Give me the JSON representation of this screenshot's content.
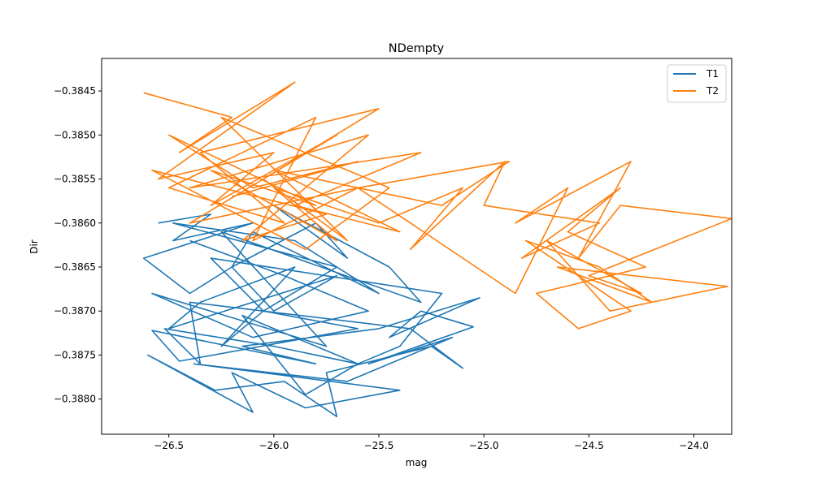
{
  "chart_data": {
    "type": "line",
    "title": "NDempty",
    "xlabel": "mag",
    "ylabel": "Dir",
    "xlim": [
      -26.82,
      -23.82
    ],
    "ylim": [
      -0.3884,
      -0.38413
    ],
    "xticks": [
      -26.5,
      -26.0,
      -25.5,
      -25.0,
      -24.5,
      -24.0
    ],
    "xtick_labels": [
      "−26.5",
      "−26.0",
      "−25.5",
      "−25.0",
      "−24.5",
      "−24.0"
    ],
    "yticks": [
      -0.3845,
      -0.385,
      -0.3855,
      -0.386,
      -0.3865,
      -0.387,
      -0.3875,
      -0.388
    ],
    "ytick_labels": [
      "−0.3845",
      "−0.3850",
      "−0.3855",
      "−0.3860",
      "−0.3865",
      "−0.3870",
      "−0.3875",
      "−0.3880"
    ],
    "grid": false,
    "legend_position": "top-right",
    "series": [
      {
        "name": "T1",
        "color": "#1f77b4",
        "x": [
          -26.55,
          -26.3,
          -26.48,
          -26.1,
          -26.62,
          -26.4,
          -26.2,
          -26.0,
          -25.7,
          -26.5,
          -26.35,
          -25.9,
          -26.25,
          -26.05,
          -25.6,
          -26.45,
          -26.58,
          -25.8,
          -26.15,
          -25.5,
          -25.02,
          -25.45,
          -25.3,
          -25.05,
          -25.55,
          -25.15,
          -25.65,
          -26.38,
          -25.4,
          -25.85,
          -26.2,
          -26.1,
          -26.6,
          -26.28,
          -25.95,
          -25.7,
          -25.75,
          -25.25,
          -25.1,
          -25.35,
          -26.4,
          -26.35,
          -26.52,
          -26.0,
          -25.6,
          -26.15,
          -25.85,
          -25.6,
          -25.4,
          -25.2,
          -26.3,
          -26.05,
          -25.7,
          -26.48,
          -25.9,
          -25.5,
          -26.1,
          -26.2,
          -25.8,
          -25.65,
          -26.0,
          -25.45,
          -25.3,
          -26.25,
          -25.75,
          -26.58,
          -26.1,
          -25.55,
          -25.95,
          -26.4
        ],
        "y": [
          -0.386,
          -0.3859,
          -0.3862,
          -0.386,
          -0.3864,
          -0.3868,
          -0.3865,
          -0.387,
          -0.3866,
          -0.3872,
          -0.3869,
          -0.3865,
          -0.3874,
          -0.387,
          -0.3872,
          -0.38757,
          -0.38722,
          -0.3876,
          -0.3874,
          -0.3872,
          -0.38685,
          -0.3873,
          -0.387,
          -0.38718,
          -0.3876,
          -0.3873,
          -0.3878,
          -0.3876,
          -0.3879,
          -0.3881,
          -0.3877,
          -0.38815,
          -0.3875,
          -0.3879,
          -0.3878,
          -0.3882,
          -0.3877,
          -0.3874,
          -0.38765,
          -0.3872,
          -0.3869,
          -0.3876,
          -0.3872,
          -0.3874,
          -0.3876,
          -0.38705,
          -0.38795,
          -0.3876,
          -0.3874,
          -0.3868,
          -0.3864,
          -0.387,
          -0.3865,
          -0.386,
          -0.3862,
          -0.3868,
          -0.3861,
          -0.3865,
          -0.386,
          -0.3864,
          -0.3858,
          -0.3865,
          -0.3869,
          -0.3861,
          -0.3874,
          -0.3868,
          -0.3873,
          -0.387,
          -0.3866,
          -0.3862
        ]
      },
      {
        "name": "T2",
        "color": "#ff7f0e",
        "x": [
          -26.62,
          -26.2,
          -26.45,
          -25.9,
          -26.55,
          -26.0,
          -26.3,
          -25.7,
          -26.4,
          -25.6,
          -26.1,
          -25.8,
          -26.5,
          -25.95,
          -26.35,
          -25.5,
          -26.05,
          -25.65,
          -26.25,
          -25.45,
          -25.85,
          -26.58,
          -25.75,
          -26.15,
          -25.55,
          -26.4,
          -25.3,
          -25.9,
          -25.4,
          -26.0,
          -25.2,
          -24.88,
          -25.6,
          -24.85,
          -24.6,
          -24.85,
          -24.3,
          -24.55,
          -24.35,
          -23.82,
          -24.5,
          -24.25,
          -24.7,
          -24.4,
          -23.84,
          -24.65,
          -24.2,
          -24.45,
          -24.8,
          -24.3,
          -24.55,
          -24.75,
          -24.23,
          -24.6,
          -24.35,
          -24.82,
          -24.45,
          -25.0,
          -24.9,
          -25.35,
          -25.1,
          -25.5,
          -26.0,
          -25.7,
          -26.3,
          -25.8,
          -26.5,
          -26.1,
          -25.6,
          -26.2
        ],
        "y": [
          -0.38452,
          -0.3848,
          -0.3852,
          -0.3844,
          -0.3855,
          -0.3852,
          -0.3858,
          -0.385,
          -0.386,
          -0.3856,
          -0.3862,
          -0.3848,
          -0.3856,
          -0.386,
          -0.3852,
          -0.3847,
          -0.3855,
          -0.3862,
          -0.3848,
          -0.3856,
          -0.3863,
          -0.3854,
          -0.3859,
          -0.3862,
          -0.385,
          -0.3856,
          -0.3852,
          -0.3858,
          -0.3861,
          -0.3854,
          -0.3858,
          -0.3853,
          -0.3856,
          -0.3868,
          -0.3856,
          -0.386,
          -0.3853,
          -0.3864,
          -0.3858,
          -0.38595,
          -0.3866,
          -0.3868,
          -0.3862,
          -0.387,
          -0.38672,
          -0.3865,
          -0.3869,
          -0.3865,
          -0.3862,
          -0.387,
          -0.3872,
          -0.3868,
          -0.3865,
          -0.3861,
          -0.3856,
          -0.3864,
          -0.386,
          -0.3858,
          -0.3853,
          -0.3863,
          -0.3856,
          -0.386,
          -0.3856,
          -0.3862,
          -0.3854,
          -0.3858,
          -0.385,
          -0.3856,
          -0.3853,
          -0.3857
        ]
      }
    ]
  }
}
